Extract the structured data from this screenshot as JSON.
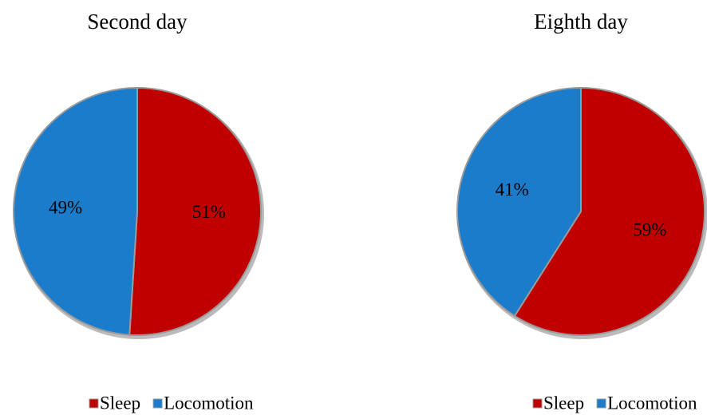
{
  "chart_data": [
    {
      "type": "pie",
      "title": "Second day",
      "categories": [
        "Sleep",
        "Locomotion"
      ],
      "values": [
        51,
        49
      ],
      "value_labels": [
        "51%",
        "49%"
      ],
      "colors": [
        "#c00000",
        "#1c7ccc"
      ],
      "legend": "bottom"
    },
    {
      "type": "pie",
      "title": "Eighth day",
      "categories": [
        "Sleep",
        "Locomotion"
      ],
      "values": [
        59,
        41
      ],
      "value_labels": [
        "59%",
        "41%"
      ],
      "colors": [
        "#c00000",
        "#1c7ccc"
      ],
      "legend": "bottom"
    }
  ]
}
